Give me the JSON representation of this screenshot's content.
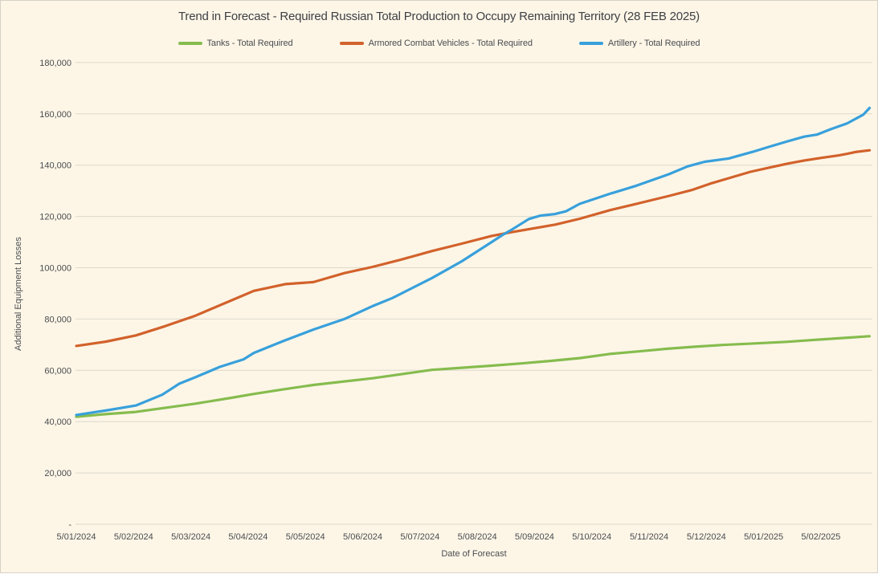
{
  "chart_data": {
    "type": "line",
    "title": "Trend in Forecast - Required Russian Total Production to Occupy Remaining Territory (28 FEB 2025)",
    "xlabel": "Date of Forecast",
    "ylabel": "Additional Equipment Losses",
    "x_tick_labels": [
      "5/01/2024",
      "5/02/2024",
      "5/03/2024",
      "5/04/2024",
      "5/05/2024",
      "5/06/2024",
      "5/07/2024",
      "5/08/2024",
      "5/09/2024",
      "5/10/2024",
      "5/11/2024",
      "5/12/2024",
      "5/01/2025",
      "5/02/2025"
    ],
    "y_tick_labels": [
      "-",
      "20,000",
      "40,000",
      "60,000",
      "80,000",
      "100,000",
      "120,000",
      "140,000",
      "160,000",
      "180,000"
    ],
    "ylim": [
      0,
      180000
    ],
    "y_step": 20000,
    "grid": "horizontal",
    "legend_position": "top",
    "x_unit": "months_since_first_tick",
    "theme": {
      "background": "#FDF6E7",
      "border": "#D5D1C6",
      "gridline": "#DCD8CB",
      "title_text": "#3E4045",
      "axis_text": "#4A4C50"
    },
    "series": [
      {
        "name": "Tanks - Total Required",
        "color": "#86BC4E",
        "points": [
          [
            0,
            41900
          ],
          [
            0.55,
            43000
          ],
          [
            1.04,
            43800
          ],
          [
            1.56,
            45400
          ],
          [
            2.08,
            47000
          ],
          [
            2.71,
            49300
          ],
          [
            3.1,
            50800
          ],
          [
            3.62,
            52600
          ],
          [
            4.14,
            54300
          ],
          [
            4.65,
            55600
          ],
          [
            5.17,
            56900
          ],
          [
            5.52,
            58000
          ],
          [
            6.21,
            60200
          ],
          [
            6.73,
            61000
          ],
          [
            7.25,
            61800
          ],
          [
            7.77,
            62700
          ],
          [
            8.29,
            63700
          ],
          [
            8.8,
            64800
          ],
          [
            9.31,
            66400
          ],
          [
            9.82,
            67400
          ],
          [
            10.3,
            68400
          ],
          [
            10.8,
            69200
          ],
          [
            11.28,
            69900
          ],
          [
            11.84,
            70500
          ],
          [
            12.4,
            71100
          ],
          [
            12.9,
            71900
          ],
          [
            13.39,
            72600
          ],
          [
            13.85,
            73300
          ]
        ]
      },
      {
        "name": "Armored Combat Vehicles - Total Required",
        "color": "#D2622B",
        "points": [
          [
            0,
            69500
          ],
          [
            0.52,
            71200
          ],
          [
            1.04,
            73600
          ],
          [
            1.55,
            77200
          ],
          [
            2.08,
            81300
          ],
          [
            2.71,
            87300
          ],
          [
            3.1,
            91000
          ],
          [
            3.65,
            93600
          ],
          [
            4.14,
            94400
          ],
          [
            4.68,
            97900
          ],
          [
            5.17,
            100300
          ],
          [
            5.66,
            103100
          ],
          [
            6.21,
            106500
          ],
          [
            6.73,
            109400
          ],
          [
            7.25,
            112400
          ],
          [
            7.58,
            113800
          ],
          [
            8.36,
            116800
          ],
          [
            8.79,
            119100
          ],
          [
            9.31,
            122400
          ],
          [
            9.78,
            124900
          ],
          [
            10.35,
            128000
          ],
          [
            10.76,
            130400
          ],
          [
            11.07,
            132800
          ],
          [
            11.39,
            134900
          ],
          [
            11.77,
            137400
          ],
          [
            12.09,
            139000
          ],
          [
            12.42,
            140600
          ],
          [
            12.71,
            141800
          ],
          [
            13.03,
            142900
          ],
          [
            13.31,
            143800
          ],
          [
            13.46,
            144400
          ],
          [
            13.6,
            145100
          ],
          [
            13.85,
            145800
          ]
        ]
      },
      {
        "name": "Artillery - Total Required",
        "color": "#38A0DB",
        "points": [
          [
            0,
            42600
          ],
          [
            0.5,
            44300
          ],
          [
            1.04,
            46300
          ],
          [
            1.5,
            50500
          ],
          [
            1.8,
            54800
          ],
          [
            2.08,
            57300
          ],
          [
            2.5,
            61300
          ],
          [
            2.92,
            64300
          ],
          [
            3.1,
            66800
          ],
          [
            3.62,
            71500
          ],
          [
            4.14,
            75900
          ],
          [
            4.68,
            80000
          ],
          [
            5.17,
            85000
          ],
          [
            5.52,
            88200
          ],
          [
            6.21,
            96000
          ],
          [
            6.73,
            102500
          ],
          [
            7.25,
            110000
          ],
          [
            7.45,
            112900
          ],
          [
            7.6,
            114800
          ],
          [
            7.9,
            119000
          ],
          [
            8.1,
            120300
          ],
          [
            8.35,
            120900
          ],
          [
            8.55,
            122000
          ],
          [
            8.79,
            124900
          ],
          [
            9.31,
            128800
          ],
          [
            9.78,
            132000
          ],
          [
            10.35,
            136500
          ],
          [
            10.67,
            139500
          ],
          [
            10.97,
            141300
          ],
          [
            11.39,
            142600
          ],
          [
            11.81,
            145200
          ],
          [
            12.09,
            147100
          ],
          [
            12.42,
            149300
          ],
          [
            12.71,
            151100
          ],
          [
            12.93,
            151900
          ],
          [
            13.17,
            154000
          ],
          [
            13.46,
            156300
          ],
          [
            13.74,
            159700
          ],
          [
            13.85,
            162300
          ]
        ]
      }
    ]
  }
}
